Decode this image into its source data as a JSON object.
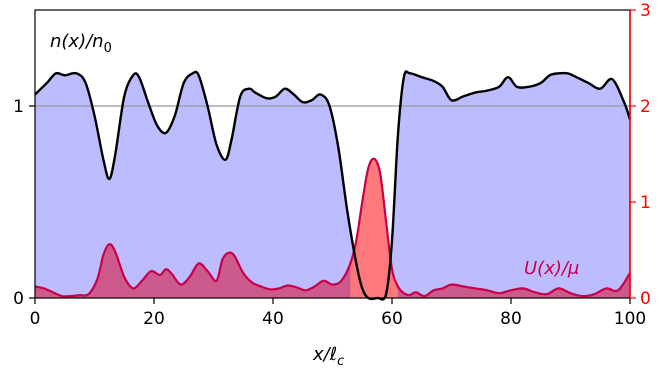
{
  "chart_data": {
    "type": "area",
    "xlabel": "x/ℓ",
    "xlabel_sub": "c",
    "xlim": [
      0,
      100
    ],
    "ylim_left": [
      0,
      1.5
    ],
    "ylim_right": [
      0,
      3
    ],
    "x_ticks": [
      0,
      20,
      40,
      60,
      80,
      100
    ],
    "x_tick_labels": [
      "0",
      "20",
      "40",
      "60",
      "80",
      "100"
    ],
    "y_left_ticks": [
      0,
      1
    ],
    "y_left_tick_labels": [
      "0",
      "1"
    ],
    "y_right_ticks": [
      0,
      1,
      2,
      3
    ],
    "y_right_tick_labels": [
      "0",
      "1",
      "2",
      "3"
    ],
    "reference_line_y": 1,
    "colors": {
      "density_fill": "#bcbcff",
      "density_line": "#000000",
      "potential_fill": "#d04878",
      "potential_line": "#c8004a",
      "right_axis": "#ff0000",
      "reference_line": "#999999"
    },
    "series": [
      {
        "name": "n(x)/n₀",
        "label_main": "n(x)/n",
        "label_sub": "0",
        "axis": "left",
        "x": [
          0,
          2,
          3.5,
          5,
          7,
          8.5,
          10,
          11.5,
          12.5,
          13.5,
          15,
          16.5,
          17.5,
          19,
          20.5,
          22,
          23.5,
          25,
          26.5,
          27.5,
          29,
          30.5,
          32,
          33,
          34.5,
          36,
          37,
          39,
          40.5,
          42,
          43.5,
          45,
          46.5,
          48,
          49.5,
          51,
          52.5,
          54,
          55,
          56,
          57.5,
          59,
          60,
          61,
          62,
          63,
          65,
          67,
          68.5,
          70,
          72,
          74,
          76,
          78,
          79.5,
          81,
          83,
          85,
          86.5,
          88,
          89.5,
          91,
          93,
          95,
          97,
          99,
          100
        ],
        "y": [
          1.06,
          1.12,
          1.17,
          1.16,
          1.17,
          1.12,
          0.95,
          0.72,
          0.62,
          0.75,
          1.05,
          1.16,
          1.15,
          1.02,
          0.9,
          0.86,
          0.95,
          1.12,
          1.17,
          1.16,
          1.0,
          0.8,
          0.72,
          0.82,
          1.05,
          1.09,
          1.07,
          1.04,
          1.05,
          1.09,
          1.06,
          1.02,
          1.03,
          1.06,
          1.0,
          0.78,
          0.45,
          0.18,
          0.05,
          0.0,
          0.0,
          0.02,
          0.3,
          0.85,
          1.15,
          1.17,
          1.15,
          1.13,
          1.1,
          1.03,
          1.05,
          1.07,
          1.08,
          1.1,
          1.15,
          1.1,
          1.1,
          1.12,
          1.16,
          1.17,
          1.17,
          1.15,
          1.12,
          1.09,
          1.14,
          1.02,
          0.93
        ]
      },
      {
        "name": "U(x)/μ",
        "label_main": "U(x)/μ",
        "axis": "right",
        "x": [
          0,
          1.5,
          3,
          4.5,
          6,
          7.5,
          9,
          10.5,
          11.5,
          12.5,
          13.5,
          15,
          16.5,
          18,
          19.5,
          21,
          22,
          23,
          24.5,
          26,
          27.5,
          29,
          30.5,
          31.5,
          32.5,
          33.5,
          35,
          36.5,
          38,
          39.5,
          41,
          42.5,
          44,
          45.5,
          47,
          48.5,
          50,
          51.5,
          53,
          54,
          55,
          56,
          57,
          58,
          59,
          60,
          61,
          62,
          63,
          64,
          65.5,
          67,
          68.5,
          70,
          72,
          74,
          76,
          78,
          80,
          82,
          84,
          86,
          88,
          90,
          92,
          94,
          96,
          98,
          100
        ],
        "y": [
          0.12,
          0.1,
          0.06,
          0.02,
          0.02,
          0.03,
          0.04,
          0.2,
          0.45,
          0.56,
          0.48,
          0.22,
          0.1,
          0.18,
          0.28,
          0.24,
          0.3,
          0.25,
          0.14,
          0.22,
          0.36,
          0.28,
          0.18,
          0.4,
          0.47,
          0.44,
          0.26,
          0.16,
          0.12,
          0.09,
          0.1,
          0.13,
          0.11,
          0.08,
          0.12,
          0.18,
          0.14,
          0.18,
          0.36,
          0.6,
          1.0,
          1.35,
          1.45,
          1.3,
          0.8,
          0.3,
          0.12,
          0.05,
          0.03,
          0.06,
          0.02,
          0.08,
          0.1,
          0.14,
          0.12,
          0.1,
          0.08,
          0.05,
          0.08,
          0.1,
          0.06,
          0.04,
          0.1,
          0.05,
          0.02,
          0.04,
          0.1,
          0.08,
          0.26
        ]
      }
    ]
  }
}
